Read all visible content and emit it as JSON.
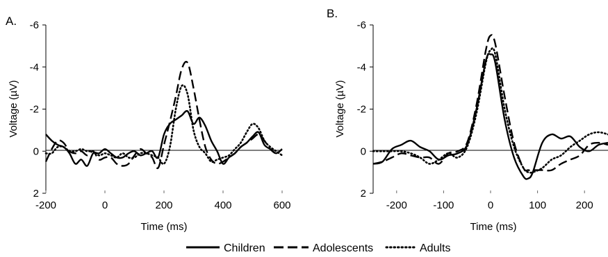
{
  "legend": {
    "items": [
      {
        "label": "Children",
        "style": "solid"
      },
      {
        "label": "Adolescents",
        "style": "dashed"
      },
      {
        "label": "Adults",
        "style": "dotted"
      }
    ]
  },
  "chart_data": [
    {
      "type": "line",
      "panel_label": "A.",
      "xlabel": "Time (ms)",
      "ylabel": "Voltage (µV)",
      "xlim": [
        -200,
        600
      ],
      "ylim": [
        2,
        -6
      ],
      "y_inverted": true,
      "xticks": [
        "-200",
        "0",
        "200",
        "400",
        "600"
      ],
      "yticks": [
        "-6",
        "-4",
        "-2",
        "0",
        "2"
      ],
      "series": [
        {
          "name": "Children",
          "style": "solid",
          "x": [
            -200,
            -180,
            -160,
            -140,
            -120,
            -100,
            -80,
            -60,
            -40,
            -20,
            0,
            20,
            40,
            60,
            80,
            100,
            120,
            140,
            160,
            180,
            200,
            220,
            240,
            260,
            280,
            300,
            320,
            340,
            360,
            380,
            400,
            420,
            440,
            460,
            480,
            500,
            520,
            540,
            560,
            580,
            600
          ],
          "y": [
            -0.8,
            -0.5,
            -0.3,
            -0.2,
            0.1,
            0.6,
            0.4,
            0.7,
            0.1,
            0.1,
            -0.1,
            0.1,
            0.3,
            0.3,
            0.1,
            0.0,
            0.2,
            0.1,
            0.0,
            0.3,
            -0.8,
            -1.3,
            -1.5,
            -1.7,
            -1.9,
            -1.3,
            -1.6,
            -1.2,
            -0.5,
            0.0,
            0.6,
            0.3,
            0.1,
            -0.2,
            -0.4,
            -0.7,
            -0.9,
            -0.3,
            -0.1,
            0.1,
            -0.1
          ]
        },
        {
          "name": "Adolescents",
          "style": "dashed",
          "x": [
            -200,
            -180,
            -160,
            -140,
            -120,
            -100,
            -80,
            -60,
            -40,
            -20,
            0,
            20,
            40,
            60,
            80,
            100,
            120,
            140,
            160,
            180,
            200,
            220,
            240,
            260,
            280,
            300,
            320,
            340,
            360,
            380,
            400,
            420,
            440,
            460,
            480,
            500,
            520,
            540,
            560,
            580,
            600
          ],
          "y": [
            0.5,
            -0.1,
            -0.5,
            -0.4,
            0.0,
            0.1,
            0.0,
            0.2,
            0.0,
            0.4,
            0.3,
            0.3,
            0.6,
            0.7,
            0.6,
            0.2,
            -0.1,
            0.1,
            0.3,
            0.8,
            -0.3,
            -1.4,
            -2.6,
            -3.9,
            -4.2,
            -3.0,
            -1.5,
            -0.2,
            0.4,
            0.6,
            0.5,
            0.3,
            0.1,
            -0.2,
            -0.4,
            -0.6,
            -0.8,
            -0.5,
            -0.1,
            0.1,
            -0.1
          ]
        },
        {
          "name": "Adults",
          "style": "dotted",
          "x": [
            -200,
            -180,
            -160,
            -140,
            -120,
            -100,
            -80,
            -60,
            -40,
            -20,
            0,
            20,
            40,
            60,
            80,
            100,
            120,
            140,
            160,
            180,
            200,
            220,
            240,
            260,
            280,
            300,
            320,
            340,
            360,
            380,
            400,
            420,
            440,
            460,
            480,
            500,
            520,
            540,
            560,
            580,
            600
          ],
          "y": [
            0.1,
            0.1,
            -0.2,
            -0.2,
            0.0,
            0.0,
            -0.1,
            0.0,
            0.0,
            0.2,
            0.1,
            0.2,
            0.3,
            0.1,
            0.3,
            0.3,
            0.1,
            0.1,
            0.2,
            0.3,
            0.6,
            -0.2,
            -2.0,
            -3.1,
            -2.7,
            -1.0,
            -0.2,
            0.1,
            0.5,
            0.4,
            0.3,
            0.2,
            -0.1,
            -0.4,
            -0.9,
            -1.3,
            -1.1,
            -0.5,
            -0.2,
            0.0,
            0.2
          ]
        }
      ]
    },
    {
      "type": "line",
      "panel_label": "B.",
      "xlabel": "Time (ms)",
      "ylabel": "Voltage (µV)",
      "xlim": [
        -250,
        250
      ],
      "ylim": [
        2,
        -6
      ],
      "y_inverted": true,
      "xticks": [
        "-200",
        "-100",
        "0",
        "100",
        "200"
      ],
      "yticks": [
        "-6",
        "-4",
        "-2",
        "0",
        "2"
      ],
      "series": [
        {
          "name": "Children",
          "style": "solid",
          "x": [
            -250,
            -230,
            -210,
            -190,
            -170,
            -150,
            -130,
            -110,
            -90,
            -70,
            -50,
            -30,
            -10,
            0,
            10,
            30,
            50,
            70,
            80,
            90,
            110,
            130,
            150,
            170,
            190,
            210,
            230,
            250
          ],
          "y": [
            0.6,
            0.5,
            -0.1,
            -0.3,
            -0.5,
            -0.2,
            0.0,
            0.4,
            0.2,
            0.1,
            -0.3,
            -2.0,
            -4.3,
            -4.6,
            -4.2,
            -1.5,
            0.3,
            1.2,
            1.3,
            1.0,
            -0.4,
            -0.8,
            -0.6,
            -0.7,
            -0.2,
            0.0,
            -0.3,
            -0.4
          ]
        },
        {
          "name": "Adolescents",
          "style": "dashed",
          "x": [
            -250,
            -230,
            -210,
            -190,
            -170,
            -150,
            -130,
            -110,
            -90,
            -70,
            -50,
            -30,
            -10,
            0,
            10,
            30,
            50,
            70,
            80,
            90,
            110,
            130,
            150,
            170,
            190,
            210,
            230,
            250
          ],
          "y": [
            0.6,
            0.5,
            0.3,
            0.1,
            0.2,
            0.3,
            0.3,
            0.6,
            0.1,
            0.0,
            -0.4,
            -2.2,
            -4.8,
            -5.5,
            -5.1,
            -2.6,
            -0.4,
            0.8,
            0.9,
            0.9,
            0.9,
            0.9,
            0.6,
            0.4,
            0.2,
            -0.3,
            -0.4,
            -0.3
          ]
        },
        {
          "name": "Adults",
          "style": "dotted",
          "x": [
            -250,
            -230,
            -210,
            -190,
            -170,
            -150,
            -130,
            -110,
            -90,
            -70,
            -50,
            -30,
            -10,
            0,
            10,
            30,
            50,
            70,
            80,
            90,
            110,
            130,
            150,
            170,
            190,
            210,
            230,
            250
          ],
          "y": [
            0.0,
            0.0,
            0.0,
            0.0,
            0.1,
            0.3,
            0.6,
            0.4,
            0.1,
            0.3,
            -0.2,
            -1.8,
            -4.2,
            -4.8,
            -4.6,
            -2.0,
            -0.2,
            0.8,
            1.0,
            1.0,
            0.8,
            0.4,
            0.2,
            -0.2,
            -0.5,
            -0.8,
            -0.9,
            -0.8
          ]
        }
      ]
    }
  ]
}
